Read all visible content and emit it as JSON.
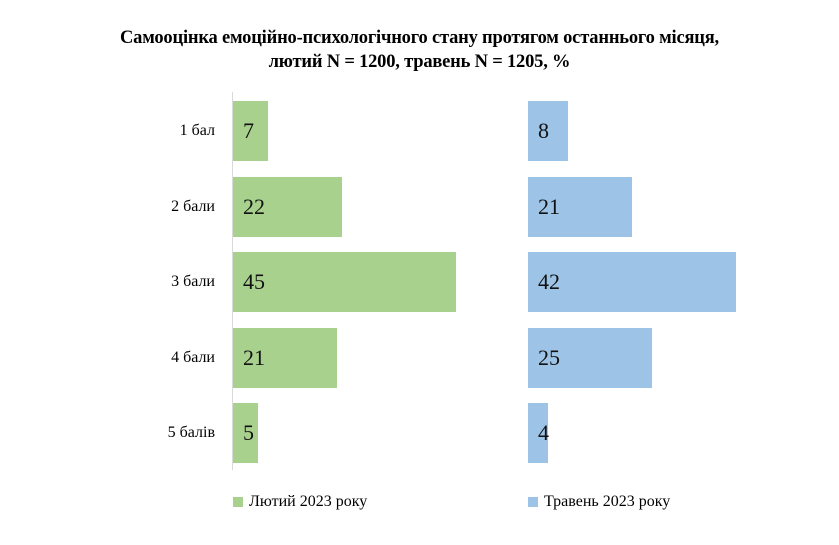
{
  "chart_data": {
    "type": "bar",
    "orientation": "horizontal",
    "title": "Самооцінка емоційно-психологічного стану протягом останнього місяця, лютий N = 1200, травень N = 1205, %",
    "title_lines": [
      "Самооцінка емоційно-психологічного стану протягом останнього місяця,",
      "лютий N = 1200, травень N = 1205, %"
    ],
    "categories": [
      "1 бал",
      "2 бали",
      "3 бали",
      "4 бали",
      "5 балів"
    ],
    "series": [
      {
        "name": "Лютий 2023 року",
        "color": "#a9d18e",
        "values": [
          7,
          22,
          45,
          21,
          5
        ]
      },
      {
        "name": "Травень 2023 року",
        "color": "#9dc3e6",
        "values": [
          8,
          21,
          42,
          25,
          4
        ]
      }
    ],
    "value_labels": {
      "feb": [
        "7",
        "22",
        "45",
        "21",
        "5"
      ],
      "may": [
        "8",
        "21",
        "42",
        "25",
        "4"
      ]
    },
    "xlabel": "",
    "ylabel": "",
    "unit": "%",
    "grid": false,
    "legend_position": "bottom",
    "layout": "two side-by-side panels sharing category axis"
  },
  "legend": {
    "feb_label": "Лютий 2023 року",
    "may_label": "Травень 2023 року"
  }
}
